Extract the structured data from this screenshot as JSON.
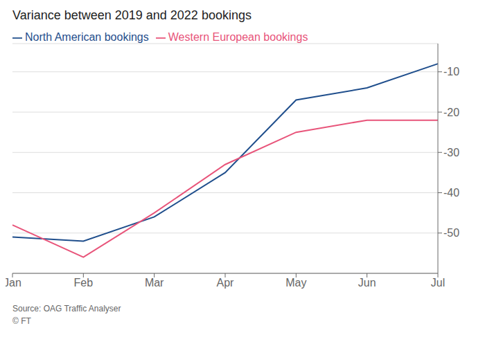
{
  "chart_data": {
    "type": "line",
    "title": "Variance between 2019 and 2022 bookings",
    "annotations": [
      "Source: OAG Traffic Analyser",
      "© FT"
    ],
    "categories": [
      "Jan",
      "Feb",
      "Mar",
      "Apr",
      "May",
      "Jun",
      "Jul"
    ],
    "series": [
      {
        "name": "North American bookings",
        "color": "#1f4e8c",
        "values": [
          -51,
          -52,
          -46,
          -35,
          -17,
          -14,
          -8
        ]
      },
      {
        "name": "Western European bookings",
        "color": "#e8547a",
        "values": [
          -48,
          -56,
          -45,
          -33,
          -25,
          -22,
          -22
        ]
      }
    ],
    "ylim": [
      -60,
      -3
    ],
    "yticks": [
      -50,
      -40,
      -30,
      -20,
      -10
    ],
    "grid": true,
    "legend": "top left"
  }
}
